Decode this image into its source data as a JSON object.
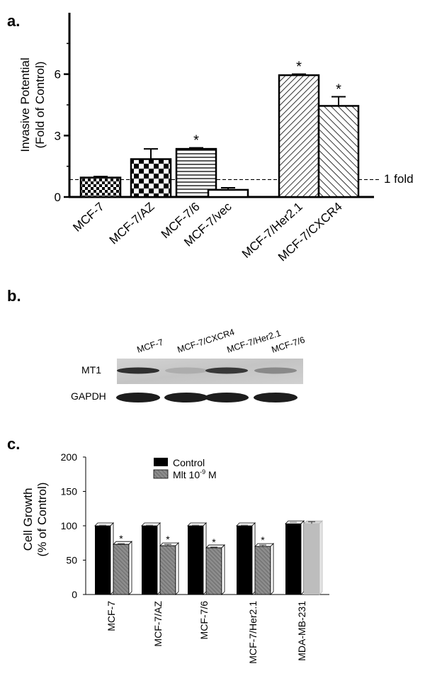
{
  "panel_a": {
    "label": "a.",
    "ylabel_line1": "Invasive Potential",
    "ylabel_line2": "(Fold of Control)",
    "reference_label": "1 fold",
    "star": "*"
  },
  "panel_b": {
    "label": "b.",
    "lanes": [
      "MCF-7",
      "MCF-7/CXCR4",
      "MCF-7/Her2.1",
      "MCF-7/6"
    ],
    "rows": [
      "MT1",
      "GAPDH"
    ],
    "mt1_intensity": [
      0.85,
      0.15,
      0.8,
      0.35
    ],
    "gapdh_intensity": [
      0.9,
      0.9,
      0.9,
      0.9
    ]
  },
  "panel_c": {
    "label": "c.",
    "ylabel_line1": "Cell Growth",
    "ylabel_line2": "(% of Control)",
    "legend_control": "Control",
    "legend_mlt": "Mlt 10",
    "legend_mlt_exp": "-9",
    "legend_mlt_unit": " M",
    "star": "*"
  },
  "chart_data": [
    {
      "type": "bar",
      "categories": [
        "MCF-7",
        "MCF-7/AZ",
        "MCF-7/6",
        "MCF-7/vec",
        "MCF-7/Her2.1",
        "MCF-7/CXCR4"
      ],
      "values": [
        0.95,
        1.85,
        2.35,
        0.35,
        5.95,
        4.45
      ],
      "errors": [
        0.05,
        0.5,
        0.05,
        0.1,
        0.05,
        0.45
      ],
      "significant": [
        false,
        false,
        true,
        false,
        true,
        true
      ],
      "patterns": [
        "checker-small",
        "checker-large",
        "horizontal",
        "none",
        "diag-right",
        "diag-left"
      ],
      "ylabel": "Invasive Potential (Fold of Control)",
      "yticks": [
        0,
        3,
        6
      ],
      "ylim": [
        0,
        9
      ],
      "reference_line": 0.85,
      "reference_label": "1 fold"
    },
    {
      "type": "bar",
      "categories": [
        "MCF-7",
        "MCF-7/AZ",
        "MCF-7/6",
        "MCF-7/Her2.1",
        "MDA-MB-231"
      ],
      "series": [
        {
          "name": "Control",
          "values": [
            100,
            100,
            100,
            100,
            103
          ],
          "errors": [
            1,
            1,
            1,
            1,
            2
          ],
          "color": "#000000"
        },
        {
          "name": "Mlt 10-9 M",
          "values": [
            73,
            71,
            68,
            70,
            103
          ],
          "errors": [
            1,
            2,
            1,
            2,
            3
          ],
          "color": "#999999",
          "significant": [
            true,
            true,
            true,
            true,
            false
          ]
        }
      ],
      "ylabel": "Cell Growth (% of Control)",
      "yticks": [
        0,
        50,
        100,
        150,
        200
      ],
      "ylim": [
        0,
        200
      ]
    }
  ]
}
